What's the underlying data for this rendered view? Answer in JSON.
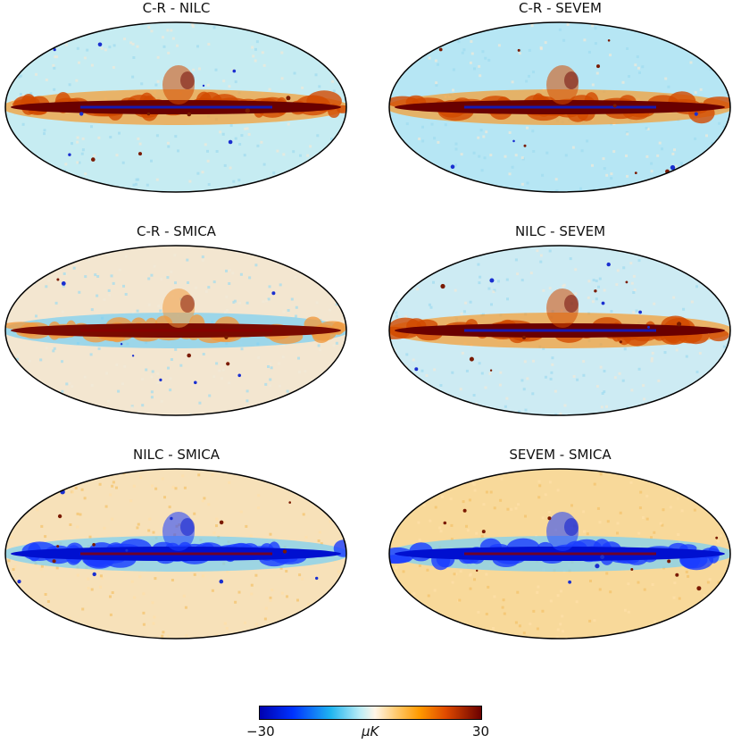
{
  "panels": [
    {
      "title": "C-R - NILC",
      "scheme": "red",
      "bg": "#c6ecf2"
    },
    {
      "title": "C-R - SEVEM",
      "scheme": "red",
      "bg": "#b6e6f4"
    },
    {
      "title": "C-R - SMICA",
      "scheme": "mixed",
      "bg": "#f3e6d0"
    },
    {
      "title": "NILC - SEVEM",
      "scheme": "red",
      "bg": "#cdebf3"
    },
    {
      "title": "NILC - SMICA",
      "scheme": "blue",
      "bg": "#f7e1b9"
    },
    {
      "title": "SEVEM - SMICA",
      "scheme": "blue",
      "bg": "#f8d99a"
    }
  ],
  "colorbar": {
    "min_label": "−30",
    "unit_label": "μK",
    "max_label": "30"
  },
  "colors": {
    "dark_red": "#6a0000",
    "orange": "#e86a00",
    "deep_blue": "#0010d0",
    "light_blue": "#1fb4f0"
  }
}
